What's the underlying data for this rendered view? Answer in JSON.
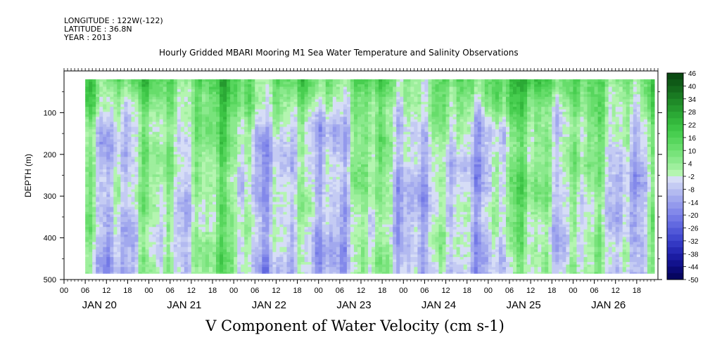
{
  "header": {
    "longitude": "LONGITUDE : 122W(-122)",
    "latitude": "LATITUDE : 36.8N",
    "year": "YEAR : 2013"
  },
  "chart_data": {
    "type": "heatmap",
    "title": "Hourly Gridded MBARI Mooring M1 Sea Water Temperature and Salinity Observations",
    "xlabel": "V Component of Water Velocity (cm s-1)",
    "ylabel": "DEPTH (m)",
    "ylim": [
      500,
      0
    ],
    "y_ticks": [
      100,
      200,
      300,
      400,
      500
    ],
    "y_tick_labels": [
      "100",
      "200",
      "300",
      "400",
      "500"
    ],
    "x_hour_labels": [
      "00",
      "06",
      "12",
      "18",
      "00",
      "06",
      "12",
      "18",
      "00",
      "06",
      "12",
      "18",
      "00",
      "06",
      "12",
      "18",
      "00",
      "06",
      "12",
      "18",
      "00",
      "06",
      "12",
      "18",
      "00",
      "06",
      "12",
      "18"
    ],
    "x_day_labels": [
      "JAN 20",
      "JAN 21",
      "JAN 22",
      "JAN 23",
      "JAN 24",
      "JAN 25",
      "JAN 26"
    ],
    "xlim_hours": [
      0,
      168
    ],
    "data_start_hour": 6,
    "data_depth_range": [
      20,
      485
    ],
    "colorbar": {
      "labels": [
        "46",
        "40",
        "34",
        "28",
        "22",
        "16",
        "10",
        "4",
        "-2",
        "-8",
        "-14",
        "-20",
        "-26",
        "-32",
        "-38",
        "-44",
        "-50"
      ],
      "levels": [
        46,
        43,
        40,
        37,
        34,
        31,
        28,
        25,
        22,
        19,
        16,
        13,
        10,
        7,
        4,
        1,
        -2,
        -5,
        -8,
        -11,
        -14,
        -17,
        -20,
        -23,
        -26,
        -29,
        -32,
        -35,
        -38,
        -41,
        -44,
        -47,
        -50
      ],
      "colors": [
        "#0a4a12",
        "#0f5a17",
        "#14691c",
        "#197a22",
        "#1f8a28",
        "#25992e",
        "#2ba935",
        "#33b73c",
        "#3cc445",
        "#48ce50",
        "#57d65d",
        "#67dd6b",
        "#78e37b",
        "#8ae98c",
        "#9eef9d",
        "#b4f5b0",
        "#d6ddf6",
        "#c4cbf3",
        "#b3baf0",
        "#a2a9ee",
        "#9399ec",
        "#8389ea",
        "#7379e6",
        "#6269e0",
        "#5158d8",
        "#4148cf",
        "#3338c3",
        "#2629b4",
        "#1b1ca2",
        "#12128d",
        "#0b0a76",
        "#060560"
      ],
      "ticks_are_level_lines": true
    },
    "dominant_pattern": "alternating vertical bands of northward (green, +4 to +46) and southward (blue, -2 to -26) flow; strongest positive values in upper 100 m"
  }
}
